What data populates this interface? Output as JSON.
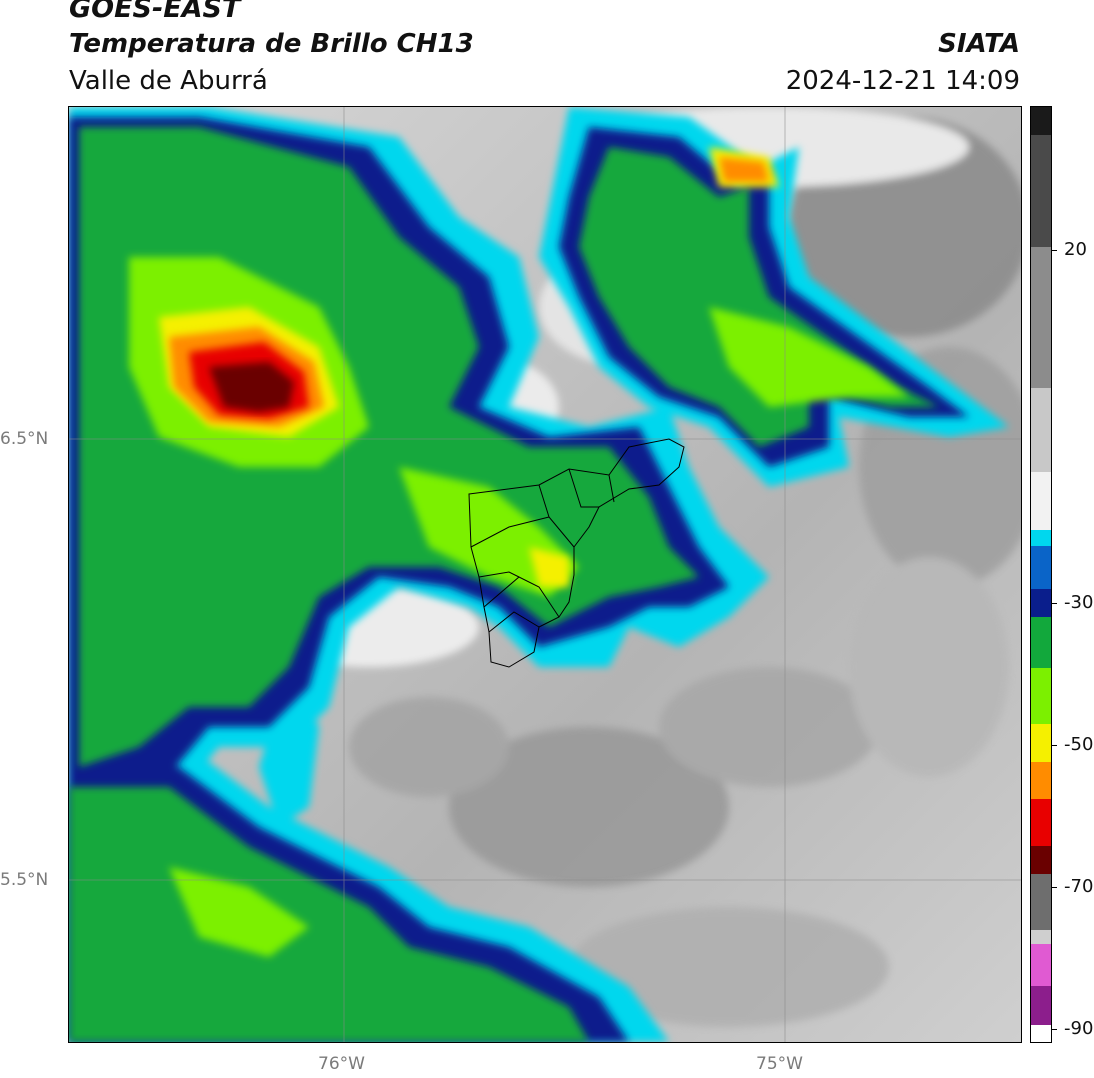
{
  "header": {
    "satellite": "GOES-EAST",
    "product": "Temperatura de Brillo CH13",
    "region": "Valle de Aburrá",
    "organization": "SIATA",
    "datetime": "2024-12-21 14:09"
  },
  "axes": {
    "latitude_labels": [
      "6.5°N",
      "5.5°N"
    ],
    "longitude_labels": [
      "76°W",
      "75°W"
    ]
  },
  "colorbar": {
    "tick_labels": [
      "20",
      "-30",
      "-50",
      "-70",
      "-90"
    ],
    "colors": {
      "warm_gray_top": "#1a1a1a",
      "gray_mid": "#8c8c8c",
      "near_white": "#f2f2f2",
      "cyan": "#00d7ee",
      "blue": "#0a64c8",
      "navy": "#0a1e8c",
      "green": "#12a83c",
      "lime": "#7cf000",
      "yellow": "#f5f000",
      "orange": "#ff8c00",
      "red": "#e80000",
      "dark_red": "#6a0000",
      "magenta": "#e05ad2",
      "purple": "#8c1e8c"
    }
  },
  "map": {
    "gridlines": true,
    "boundary": "Valle de Aburrá municipalities"
  }
}
